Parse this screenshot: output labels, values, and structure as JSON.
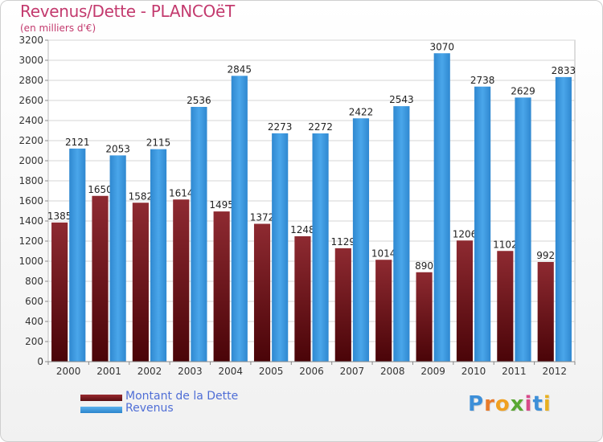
{
  "chart_data": {
    "type": "bar",
    "title": "Revenus/Dette - PLANCOëT",
    "subtitle": "(en milliers d'€)",
    "xlabel": "",
    "ylabel": "",
    "ylim": [
      0,
      3200
    ],
    "ytick_step": 200,
    "grid": true,
    "categories": [
      "2000",
      "2001",
      "2002",
      "2003",
      "2004",
      "2005",
      "2006",
      "2007",
      "2008",
      "2009",
      "2010",
      "2011",
      "2012"
    ],
    "series": [
      {
        "name": "Montant de la Dette",
        "color": "#8b1e24",
        "values": [
          1385,
          1650,
          1582,
          1614,
          1495,
          1372,
          1248,
          1129,
          1014,
          890,
          1206,
          1102,
          992
        ],
        "labels": [
          "1385",
          "1650",
          "1582",
          "1614",
          "1495",
          "1372",
          "1248",
          "1129",
          "1014",
          "890",
          "1206",
          "1102",
          "992"
        ]
      },
      {
        "name": "Revenus",
        "color": "#3d9ae0",
        "values": [
          2121,
          2053,
          2115,
          2536,
          2845,
          2273,
          2272,
          2422,
          2543,
          3070,
          2738,
          2629,
          2833
        ],
        "labels": [
          "2121",
          "2053",
          "2115",
          "2536",
          "2845",
          "2273",
          "2272",
          "2422",
          "2543",
          "3070",
          "2738",
          "2629",
          "2833"
        ]
      }
    ],
    "legend": "bottom-left"
  },
  "logo": {
    "letters": [
      "P",
      "r",
      "o",
      "x",
      "i",
      "t",
      "i"
    ],
    "colors": [
      "#3d8fd8",
      "#e87a2a",
      "#f0a020",
      "#5aa832",
      "#d84a8a",
      "#3d8fd8",
      "#e8b020"
    ]
  }
}
